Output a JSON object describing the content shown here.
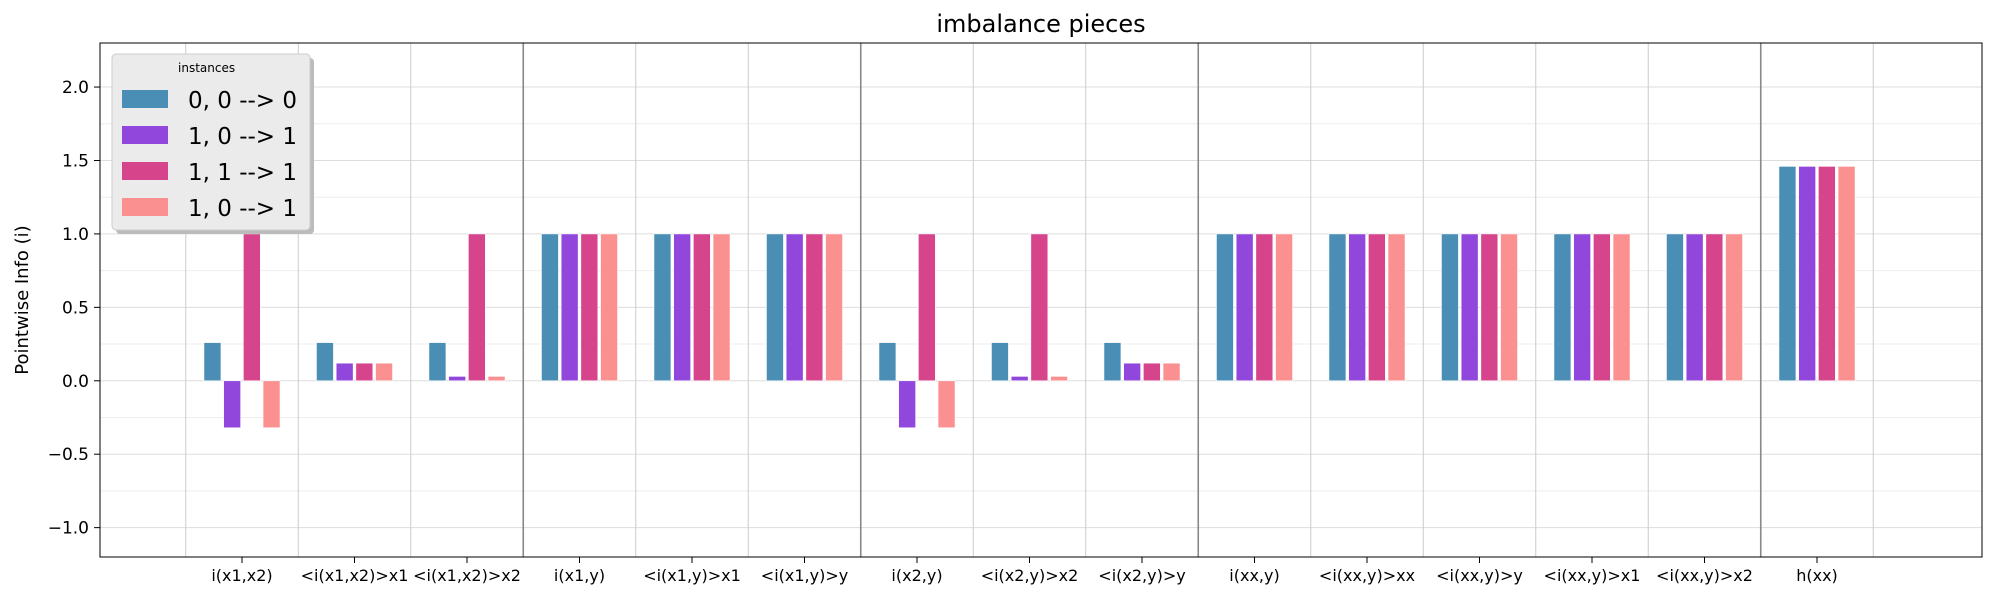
{
  "chart_data": {
    "type": "bar",
    "title": "imbalance pieces",
    "ylabel": "Pointwise Info (i)",
    "xlabel": "",
    "ylim": [
      -1.2,
      2.3
    ],
    "yticks": [
      "2.0",
      "1.5",
      "1.0",
      "0.5",
      "0.0",
      "−0.5",
      "−1.0"
    ],
    "ytick_values": [
      2.0,
      1.5,
      1.0,
      0.5,
      0.0,
      -0.5,
      -1.0
    ],
    "grid": true,
    "legend": {
      "title": "instances",
      "placement": "top-left"
    },
    "colors": [
      "#4a8db5",
      "#9147dc",
      "#d6448c",
      "#fb9090"
    ],
    "categories": [
      "i(x1,x2)",
      "<i(x1,x2)>x1",
      "<i(x1,x2)>x2",
      "i(x1,y)",
      "<i(x1,y)>x1",
      "<i(x1,y)>y",
      "i(x2,y)",
      "<i(x2,y)>x2",
      "<i(x2,y)>y",
      "i(xx,y)",
      "<i(xx,y)>xx",
      "<i(xx,y)>y",
      "<i(xx,y)>x1",
      "<i(xx,y)>x2",
      "h(xx)"
    ],
    "group_separators_after": [
      2,
      5,
      8,
      13
    ],
    "series": [
      {
        "name": "0, 0 --> 0",
        "values": [
          0.26,
          0.26,
          0.26,
          1.0,
          1.0,
          1.0,
          0.26,
          0.26,
          0.26,
          1.0,
          1.0,
          1.0,
          1.0,
          1.0,
          1.46
        ]
      },
      {
        "name": "1, 0 --> 1",
        "values": [
          -0.32,
          0.12,
          0.03,
          1.0,
          1.0,
          1.0,
          -0.32,
          0.03,
          0.12,
          1.0,
          1.0,
          1.0,
          1.0,
          1.0,
          1.46
        ]
      },
      {
        "name": "1, 1 --> 1",
        "values": [
          1.0,
          0.12,
          1.0,
          1.0,
          1.0,
          1.0,
          1.0,
          1.0,
          0.12,
          1.0,
          1.0,
          1.0,
          1.0,
          1.0,
          1.46
        ]
      },
      {
        "name": "1, 0 --> 1",
        "values": [
          -0.32,
          0.12,
          0.03,
          1.0,
          1.0,
          1.0,
          -0.32,
          0.03,
          0.12,
          1.0,
          1.0,
          1.0,
          1.0,
          1.0,
          1.46
        ]
      }
    ]
  }
}
